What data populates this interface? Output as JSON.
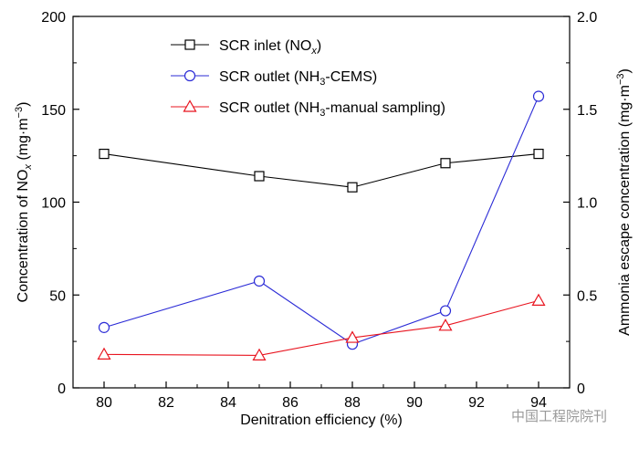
{
  "chart_data": {
    "type": "line",
    "title": "",
    "xlabel": "Denitration efficiency (%)",
    "x": [
      80,
      85,
      88,
      91,
      94
    ],
    "x_ticks": [
      "80",
      "82",
      "84",
      "86",
      "88",
      "90",
      "92",
      "94"
    ],
    "xlim": [
      79,
      95
    ],
    "ylabel_left": {
      "main": "Concentration of NO",
      "sub": "x",
      "unit": " (mg·m",
      "sup": "−3",
      "close": ")"
    },
    "ylim_left": [
      0,
      200
    ],
    "yticks_left": [
      "0",
      "50",
      "100",
      "150",
      "200"
    ],
    "ylabel_right": {
      "main": "Ammonia escape concentration (mg·m",
      "sup": "−3",
      "close": ")"
    },
    "ylim_right": [
      0,
      2.0
    ],
    "yticks_right": [
      "0",
      "0.5",
      "1.0",
      "1.5",
      "2.0"
    ],
    "series": [
      {
        "name": "SCR inlet (NOx)",
        "legend": {
          "pre": "SCR inlet (NO",
          "sub": "x",
          "post": ")"
        },
        "axis": "left",
        "color": "#000000",
        "marker": "square",
        "values": [
          126,
          114,
          108,
          121,
          126
        ]
      },
      {
        "name": "SCR outlet (NH3-CEMS)",
        "legend": {
          "pre": "SCR outlet (NH",
          "sub": "3",
          "post": "-CEMS)"
        },
        "axis": "right",
        "color": "#2b2bd6",
        "marker": "circle",
        "values": [
          0.325,
          0.575,
          0.235,
          0.415,
          1.57
        ]
      },
      {
        "name": "SCR outlet (NH3-manual sampling)",
        "legend": {
          "pre": "SCR outlet (NH",
          "sub": "3",
          "post": "-manual sampling)"
        },
        "axis": "right",
        "color": "#e8141f",
        "marker": "triangle",
        "values": [
          0.18,
          0.175,
          0.27,
          0.335,
          0.47
        ]
      }
    ],
    "legend_position": "top-left"
  },
  "watermark": "中国工程院院刊"
}
